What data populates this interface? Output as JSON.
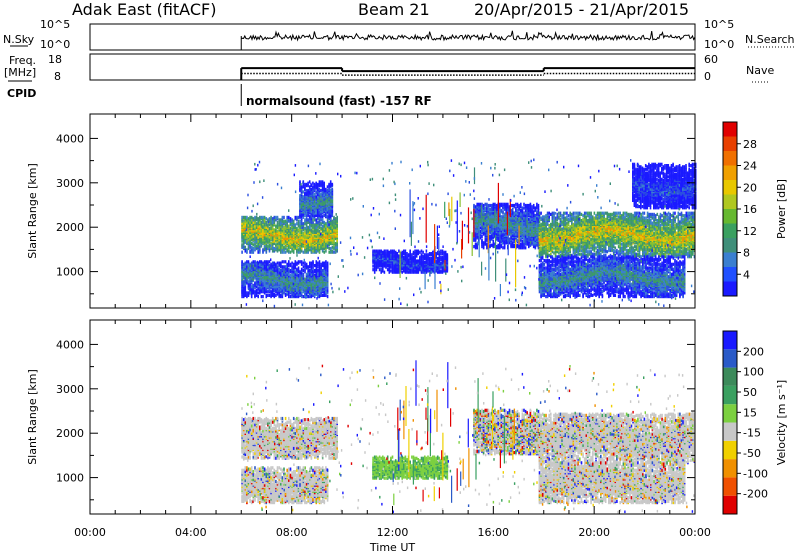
{
  "header": {
    "radar": "Adak East (fitACF)",
    "beam": "Beam 21",
    "date_range": "20/Apr/2015 - 21/Apr/2015"
  },
  "sky_panel": {
    "label": "N.Sky",
    "right_label": "N.Search",
    "left_ticks": [
      "10^5",
      "10^0"
    ],
    "right_ticks": [
      "10^5",
      "10^0"
    ]
  },
  "freq_panel": {
    "label_line1": "Freq.",
    "label_line2": "[MHz]",
    "right_label": "Nave",
    "left_ticks": [
      "18",
      "8"
    ],
    "right_ticks": [
      "60",
      "0"
    ],
    "freq_segments": [
      {
        "start_h": 6.0,
        "end_h": 10.0,
        "mhz": 12.4
      },
      {
        "start_h": 10.0,
        "end_h": 18.0,
        "mhz": 10.8
      },
      {
        "start_h": 18.0,
        "end_h": 24.0,
        "mhz": 12.4
      }
    ],
    "nave_segments": [
      {
        "start_h": 6.0,
        "end_h": 10.0,
        "nave": 16
      },
      {
        "start_h": 10.0,
        "end_h": 18.0,
        "nave": 12
      },
      {
        "start_h": 18.0,
        "end_h": 24.0,
        "nave": 16
      }
    ]
  },
  "cpid": {
    "label": "CPID",
    "mode": "normalsound (fast) -157 RF"
  },
  "chart_data": [
    {
      "type": "heatmap",
      "name": "power",
      "ylabel": "Slant Range [km]",
      "xlabel": "Time UT",
      "xlim": [
        0,
        24
      ],
      "ylim": [
        180,
        4550
      ],
      "x_ticks": [
        "00:00",
        "04:00",
        "08:00",
        "12:00",
        "16:00",
        "20:00",
        "00:00"
      ],
      "y_ticks": [
        1000,
        2000,
        3000,
        4000
      ],
      "colorbar": {
        "label": "Power [dB]",
        "ticks": [
          4,
          8,
          12,
          16,
          20,
          24,
          28
        ],
        "colors": [
          "#1a1aff",
          "#2050ff",
          "#3a7fd0",
          "#3f8f7a",
          "#3aa060",
          "#66b830",
          "#b0c820",
          "#e8c800",
          "#f0a000",
          "#f07000",
          "#e84000",
          "#e00000"
        ]
      },
      "regions": [
        {
          "t0": 6.0,
          "t1": 9.8,
          "r_lo": 1400,
          "r_hi": 2200,
          "level": "high"
        },
        {
          "t0": 6.0,
          "t1": 9.4,
          "r_lo": 400,
          "r_hi": 1200,
          "level": "mid"
        },
        {
          "t0": 8.3,
          "t1": 9.6,
          "r_lo": 2200,
          "r_hi": 3000,
          "level": "mid"
        },
        {
          "t0": 11.2,
          "t1": 14.2,
          "r_lo": 950,
          "r_hi": 1450,
          "level": "low"
        },
        {
          "t0": 15.2,
          "t1": 17.8,
          "r_lo": 1500,
          "r_hi": 2500,
          "level": "mid"
        },
        {
          "t0": 17.8,
          "t1": 24.0,
          "r_lo": 1300,
          "r_hi": 2300,
          "level": "high"
        },
        {
          "t0": 17.8,
          "t1": 23.6,
          "r_lo": 400,
          "r_hi": 1300,
          "level": "mid"
        },
        {
          "t0": 21.5,
          "t1": 24.0,
          "r_lo": 2400,
          "r_hi": 3400,
          "level": "low"
        }
      ]
    },
    {
      "type": "heatmap",
      "name": "velocity",
      "ylabel": "Slant Range [km]",
      "xlabel": "Time UT",
      "xlim": [
        0,
        24
      ],
      "ylim": [
        180,
        4550
      ],
      "x_ticks": [
        "00:00",
        "04:00",
        "08:00",
        "12:00",
        "16:00",
        "20:00",
        "00:00"
      ],
      "y_ticks": [
        1000,
        2000,
        3000,
        4000
      ],
      "colorbar": {
        "label": "Velocity [m s⁻¹]",
        "ticks": [
          "200",
          "100",
          "50",
          "15",
          "-15",
          "-50",
          "-100",
          "-200"
        ],
        "colors": [
          "#1a1aff",
          "#2a5ac8",
          "#3c8a5a",
          "#3aa060",
          "#7cd040",
          "#c8c8c8",
          "#f0d000",
          "#f09000",
          "#f05000",
          "#e00000"
        ]
      },
      "regions": [
        {
          "t0": 6.0,
          "t1": 9.8,
          "r_lo": 1400,
          "r_hi": 2300,
          "level": "gray"
        },
        {
          "t0": 6.0,
          "t1": 9.4,
          "r_lo": 400,
          "r_hi": 1200,
          "level": "gray"
        },
        {
          "t0": 11.2,
          "t1": 14.2,
          "r_lo": 950,
          "r_hi": 1450,
          "level": "green"
        },
        {
          "t0": 15.2,
          "t1": 17.8,
          "r_lo": 1500,
          "r_hi": 2500,
          "level": "mixed"
        },
        {
          "t0": 17.8,
          "t1": 24.0,
          "r_lo": 1300,
          "r_hi": 2400,
          "level": "gray"
        },
        {
          "t0": 17.8,
          "t1": 23.6,
          "r_lo": 400,
          "r_hi": 1300,
          "level": "gray"
        }
      ]
    }
  ]
}
